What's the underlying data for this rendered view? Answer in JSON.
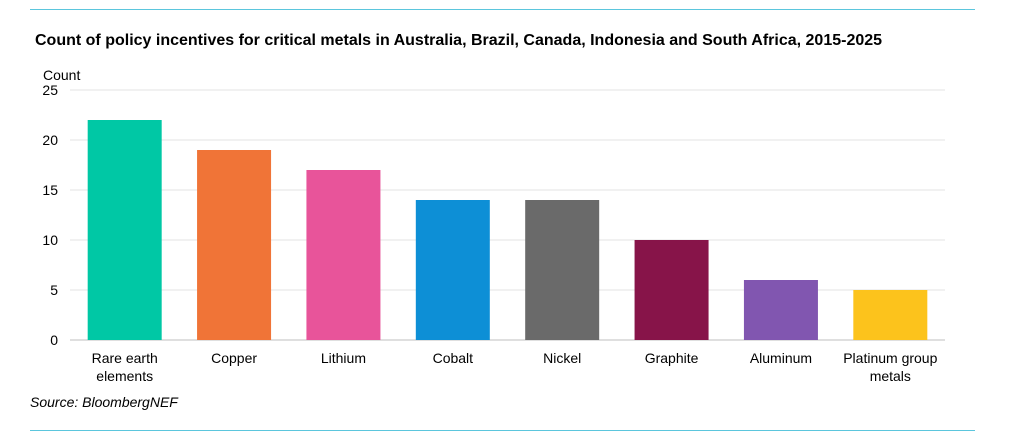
{
  "title": "Count of policy incentives for critical metals in Australia, Brazil, Canada, Indonesia and South Africa, 2015-2025",
  "source": "Source: BloombergNEF",
  "chart_data": {
    "type": "bar",
    "title": "Count of policy incentives for critical metals in Australia, Brazil, Canada, Indonesia and South Africa, 2015-2025",
    "ylabel": "Count",
    "xlabel": "",
    "ylim": [
      0,
      25
    ],
    "yticks": [
      0,
      5,
      10,
      15,
      20,
      25
    ],
    "grid": true,
    "legend": "none",
    "categories": [
      [
        "Rare earth",
        "elements"
      ],
      [
        "Copper"
      ],
      [
        "Lithium"
      ],
      [
        "Cobalt"
      ],
      [
        "Nickel"
      ],
      [
        "Graphite"
      ],
      [
        "Aluminum"
      ],
      [
        "Platinum group",
        "metals"
      ]
    ],
    "values": [
      22,
      19,
      17,
      14,
      14,
      10,
      6,
      5
    ],
    "colors": [
      "#00c8a5",
      "#f07437",
      "#e8549a",
      "#0d8fd6",
      "#6a6a6a",
      "#871449",
      "#8156b0",
      "#fcc31c"
    ]
  }
}
